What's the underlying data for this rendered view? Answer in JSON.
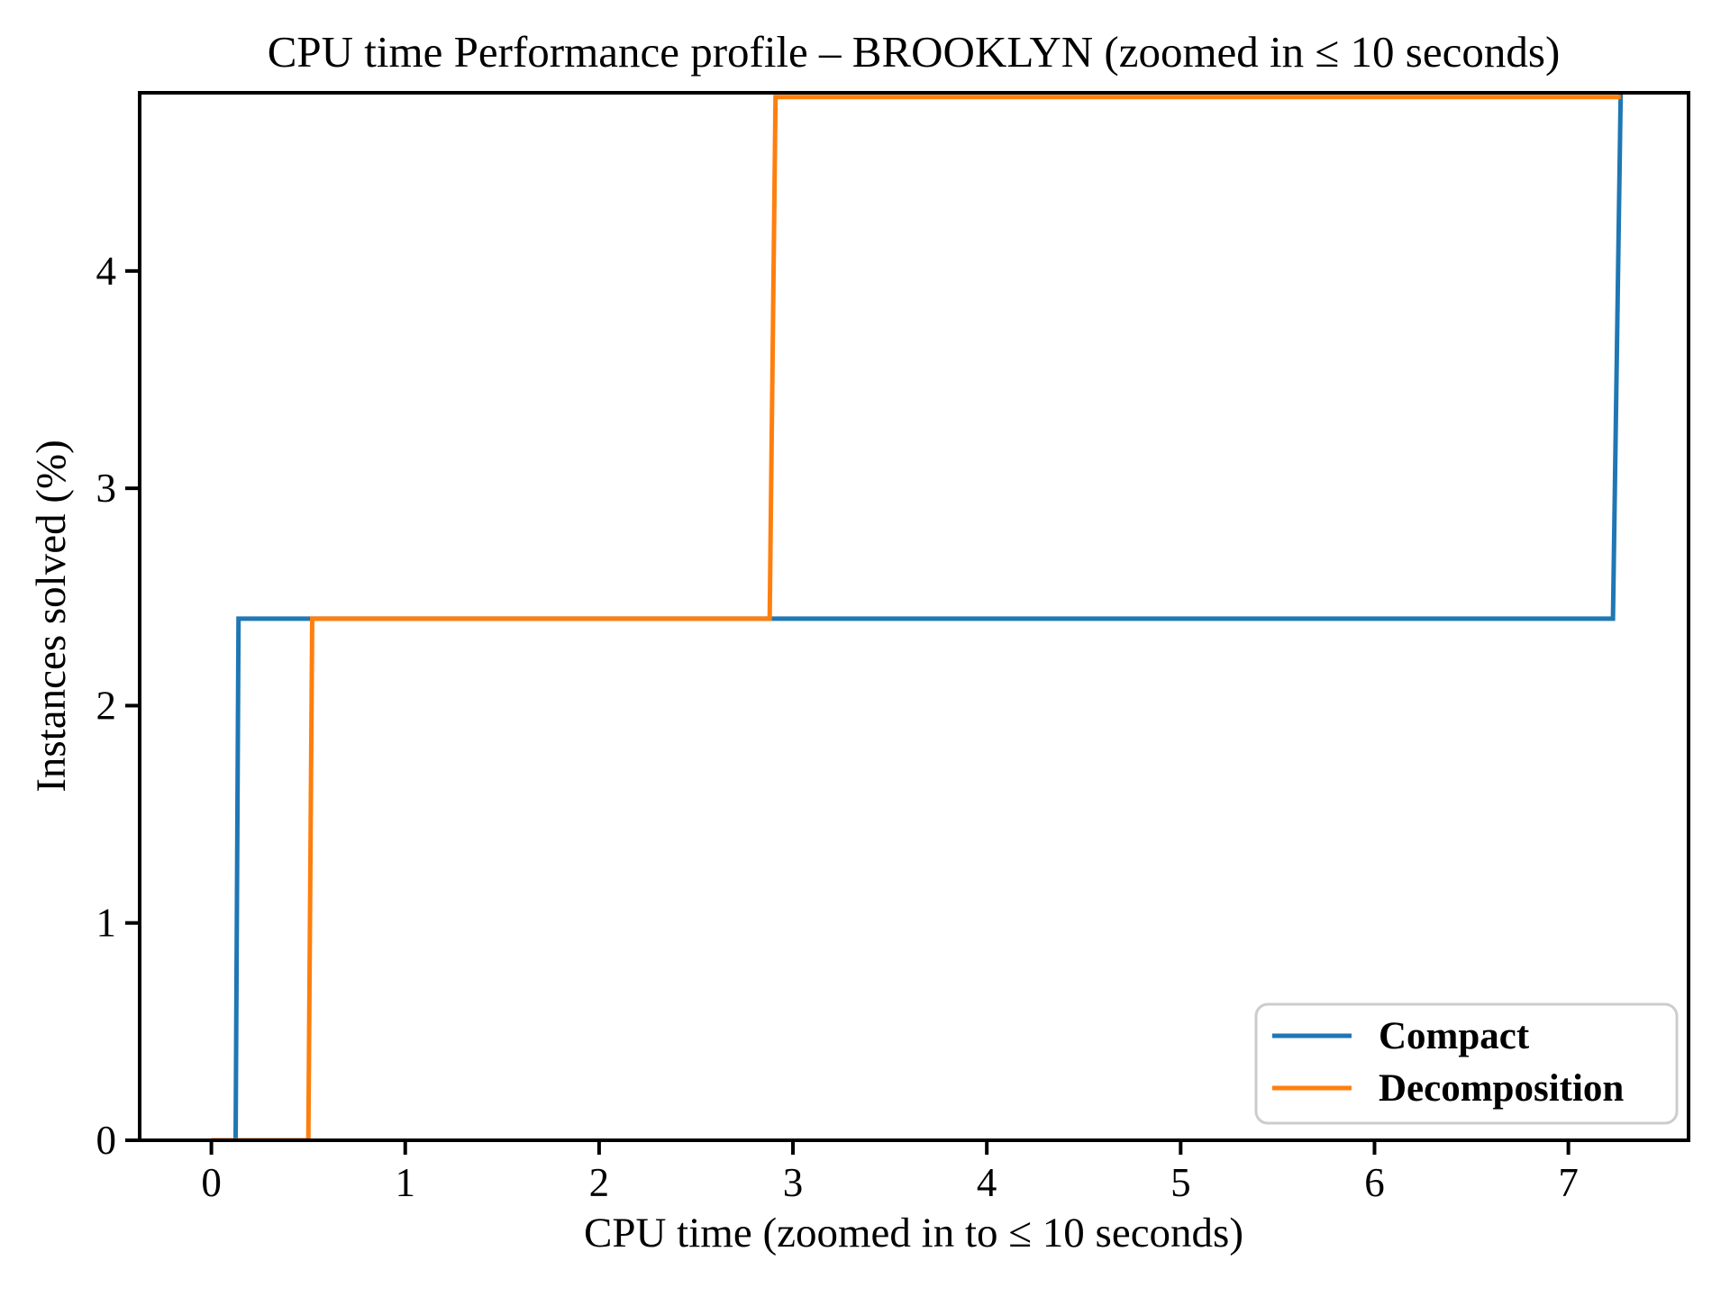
{
  "chart_data": {
    "type": "line",
    "subtype": "step-performance-profile",
    "title": "CPU time Performance profile – BROOKLYN (zoomed in ≤ 10 seconds)",
    "xlabel": "CPU time (zoomed in to ≤ 10 seconds)",
    "ylabel": "Instances solved (%)",
    "xlim": [
      -0.37,
      7.62
    ],
    "ylim": [
      0,
      4.82
    ],
    "xticks": [
      0,
      1,
      2,
      3,
      4,
      5,
      6,
      7
    ],
    "yticks": [
      0,
      1,
      2,
      3,
      4
    ],
    "grid": false,
    "background": "#ffffff",
    "axis_color": "#000000",
    "legend": {
      "position": "lower right"
    },
    "series": [
      {
        "name": "Compact",
        "color": "#1f77b4",
        "points": [
          [
            0.125,
            0
          ],
          [
            0.14,
            2.4
          ],
          [
            7.23,
            2.4
          ],
          [
            7.27,
            4.82
          ]
        ]
      },
      {
        "name": "Decomposition",
        "color": "#ff7f0e",
        "points": [
          [
            0,
            0
          ],
          [
            0.5,
            0
          ],
          [
            0.52,
            2.4
          ],
          [
            2.88,
            2.4
          ],
          [
            2.91,
            4.8
          ],
          [
            7.27,
            4.8
          ]
        ]
      }
    ]
  }
}
